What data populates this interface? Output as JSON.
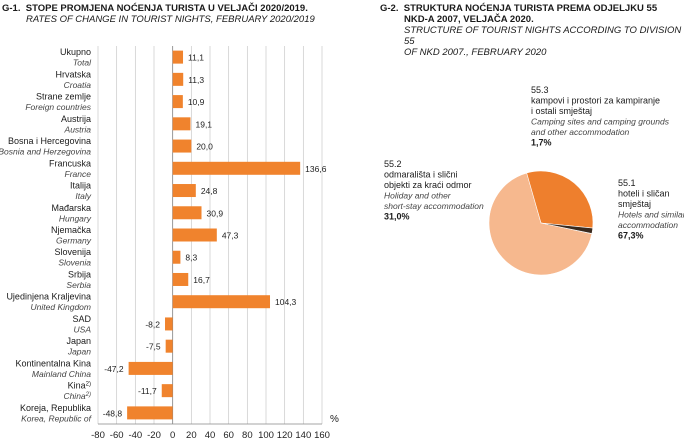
{
  "left_title": {
    "code": "G-1.",
    "line1": "STOPE PROMJENA NOĆENJA TURISTA U VELJAČI 2020/2019.",
    "line2": "RATES OF CHANGE IN TOURIST NIGHTS, FEBRUARY 2020/2019"
  },
  "right_title": {
    "code": "G-2.",
    "line1": "STRUKTURA NOĆENJA TURISTA PREMA ODJELJKU 55",
    "line2": "NKD-A 2007, VELJAČA 2020.",
    "line3": "STRUCTURE OF TOURIST NIGHTS ACCORDING TO DIVISION 55",
    "line4": "OF NKD 2007., FEBRUARY 2020"
  },
  "chart_data": [
    {
      "type": "bar",
      "orientation": "horizontal",
      "unit_label": "%",
      "xlim": [
        -80,
        160
      ],
      "x_ticks": [
        -80,
        -60,
        -40,
        -20,
        0,
        20,
        40,
        60,
        80,
        100,
        120,
        140,
        160
      ],
      "grid": true,
      "categories": [
        {
          "hr": "Ukupno",
          "en": "Total",
          "value": 11.1,
          "label": "11,1"
        },
        {
          "hr": "Hrvatska",
          "en": "Croatia",
          "value": 11.3,
          "label": "11,3"
        },
        {
          "hr": "Strane zemlje",
          "en": "Foreign countries",
          "value": 10.9,
          "label": "10,9"
        },
        {
          "hr": "Austrija",
          "en": "Austria",
          "value": 19.1,
          "label": "19,1"
        },
        {
          "hr": "Bosna i Hercegovina",
          "en": "Bosnia and Herzegovina",
          "value": 20.0,
          "label": "20,0"
        },
        {
          "hr": "Francuska",
          "en": "France",
          "value": 136.6,
          "label": "136,6"
        },
        {
          "hr": "Italija",
          "en": "Italy",
          "value": 24.8,
          "label": "24,8"
        },
        {
          "hr": "Mađarska",
          "en": "Hungary",
          "value": 30.9,
          "label": "30,9"
        },
        {
          "hr": "Njemačka",
          "en": "Germany",
          "value": 47.3,
          "label": "47,3"
        },
        {
          "hr": "Slovenija",
          "en": "Slovenia",
          "value": 8.3,
          "label": "8,3"
        },
        {
          "hr": "Srbija",
          "en": "Serbia",
          "value": 16.7,
          "label": "16,7"
        },
        {
          "hr": "Ujedinjena Kraljevina",
          "en": "United Kingdom",
          "value": 104.3,
          "label": "104,3"
        },
        {
          "hr": "SAD",
          "en": "USA",
          "value": -8.2,
          "label": "-8,2"
        },
        {
          "hr": "Japan",
          "en": "Japan",
          "value": -7.5,
          "label": "-7,5"
        },
        {
          "hr": "Kontinentalna Kina",
          "en": "Mainland China",
          "value": -47.2,
          "label": "-47,2"
        },
        {
          "hr": "Kina",
          "en": "China",
          "sup": "2)",
          "value": -11.7,
          "label": "-11,7"
        },
        {
          "hr": "Koreja, Republika",
          "en": "Korea, Republic of",
          "value": -48.8,
          "label": "-48,8"
        }
      ],
      "bar_color": "#F0832D"
    },
    {
      "type": "pie",
      "slices": [
        {
          "code": "55.1",
          "hr": [
            "hoteli i sličan",
            "smještaj"
          ],
          "en": [
            "Hotels and similar",
            "accommodation"
          ],
          "value": 67.3,
          "label": "67,3%",
          "color": "#F6B88E"
        },
        {
          "code": "55.2",
          "hr": [
            "odmarališta i slični",
            "objekti za kraći odmor"
          ],
          "en": [
            "Holiday and other",
            "short-stay accommodation"
          ],
          "value": 31.0,
          "label": "31,0%",
          "color": "#EE7F2D"
        },
        {
          "code": "55.3",
          "hr": [
            "kampovi i prostori za kampiranje",
            "i ostali smještaj"
          ],
          "en": [
            "Camping sites and camping grounds",
            "and other accommodation"
          ],
          "value": 1.7,
          "label": "1,7%",
          "color": "#3A2A1E"
        }
      ]
    }
  ]
}
